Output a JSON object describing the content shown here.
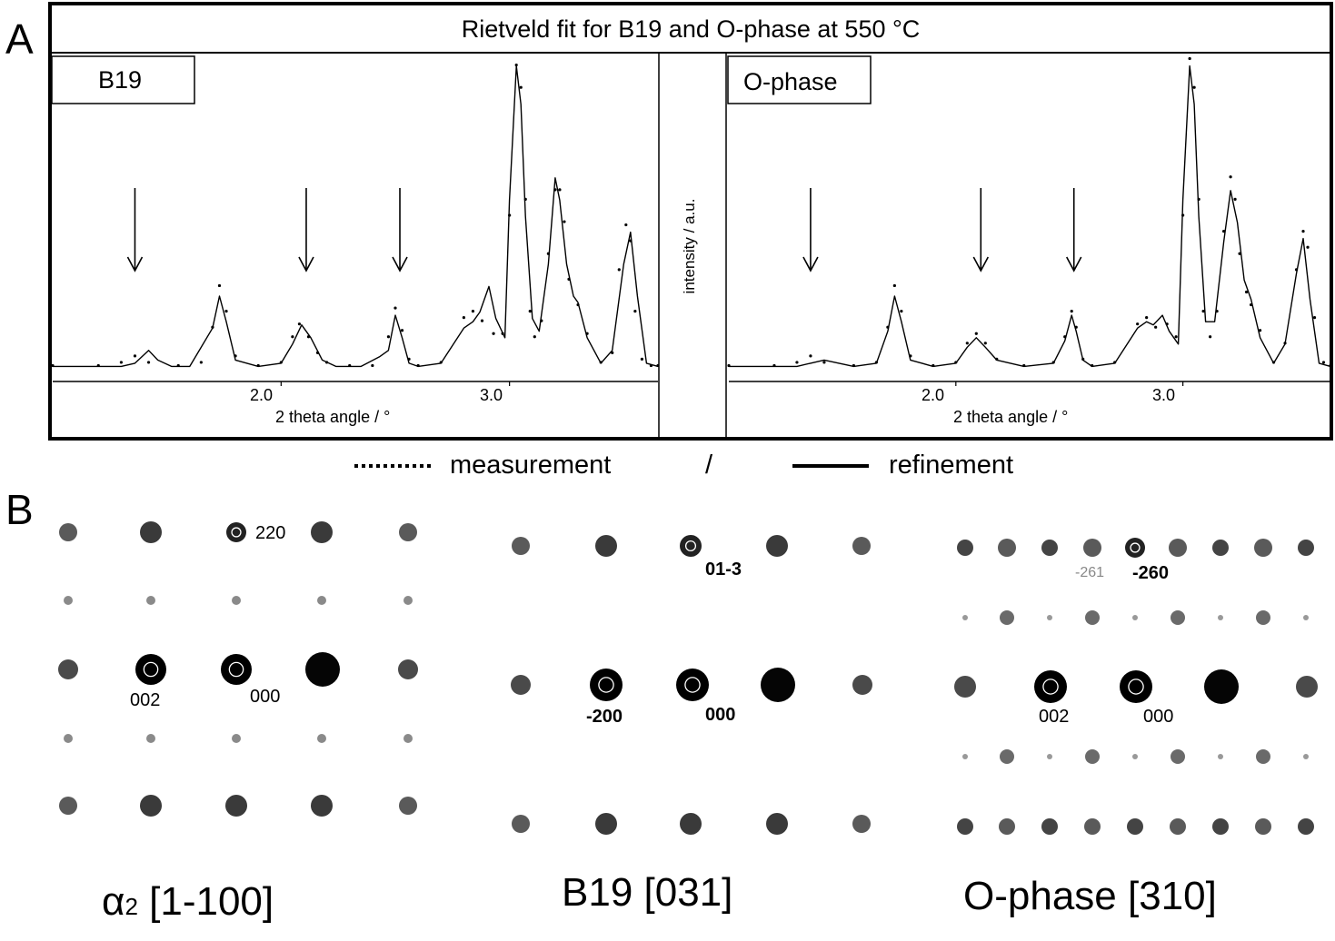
{
  "panel_a": {
    "label": "A",
    "title": "Rietveld fit for B19 and O-phase at 550 °C",
    "ylabel": "intensity / a.u.",
    "legend": {
      "measurement": "measurement",
      "separator": "/",
      "refinement": "refinement"
    }
  },
  "panel_b": {
    "label": "B",
    "patterns": [
      {
        "zone_symbol": "α",
        "zone_sub": "2",
        "zone_axis": "[1-100]",
        "labels": [
          "220",
          "002",
          "000"
        ]
      },
      {
        "zone_axis": "B19 [031]",
        "labels": [
          "01-3",
          "-200",
          "000"
        ]
      },
      {
        "zone_axis": "O-phase [310]",
        "labels": [
          "-261",
          "-260",
          "002",
          "000"
        ]
      }
    ]
  },
  "chart_data": [
    {
      "type": "line",
      "title": "B19",
      "xlabel": "2 theta angle / °",
      "ylabel": "intensity / a.u.",
      "xlim": [
        1.0,
        3.65
      ],
      "ylim": [
        0,
        1.0
      ],
      "xticks": [
        "2.0",
        "3.0"
      ],
      "annotations": [
        {
          "type": "arrow-down",
          "x": 1.36
        },
        {
          "type": "arrow-down",
          "x": 2.11
        },
        {
          "type": "arrow-down",
          "x": 2.52
        }
      ],
      "series": [
        {
          "name": "measurement",
          "x": [
            1.0,
            1.2,
            1.3,
            1.36,
            1.42,
            1.55,
            1.65,
            1.7,
            1.73,
            1.76,
            1.8,
            1.9,
            2.0,
            2.05,
            2.08,
            2.12,
            2.16,
            2.2,
            2.3,
            2.4,
            2.47,
            2.5,
            2.53,
            2.56,
            2.6,
            2.7,
            2.8,
            2.84,
            2.88,
            2.93,
            2.97,
            3.0,
            3.03,
            3.05,
            3.07,
            3.09,
            3.11,
            3.14,
            3.17,
            3.2,
            3.22,
            3.24,
            3.26,
            3.3,
            3.34,
            3.4,
            3.45,
            3.48,
            3.51,
            3.53,
            3.55,
            3.58,
            3.62,
            3.65
          ],
          "y": [
            0.03,
            0.03,
            0.04,
            0.06,
            0.04,
            0.03,
            0.04,
            0.15,
            0.28,
            0.2,
            0.06,
            0.03,
            0.04,
            0.12,
            0.16,
            0.12,
            0.07,
            0.04,
            0.03,
            0.03,
            0.12,
            0.21,
            0.14,
            0.05,
            0.03,
            0.04,
            0.18,
            0.2,
            0.17,
            0.13,
            0.13,
            0.5,
            0.97,
            0.9,
            0.55,
            0.2,
            0.12,
            0.17,
            0.38,
            0.58,
            0.58,
            0.48,
            0.3,
            0.22,
            0.13,
            0.04,
            0.07,
            0.33,
            0.47,
            0.42,
            0.2,
            0.05,
            0.03,
            0.03
          ]
        },
        {
          "name": "refinement",
          "x": [
            1.0,
            1.3,
            1.36,
            1.42,
            1.46,
            1.52,
            1.6,
            1.7,
            1.73,
            1.76,
            1.8,
            1.9,
            2.0,
            2.05,
            2.09,
            2.13,
            2.18,
            2.24,
            2.35,
            2.43,
            2.47,
            2.5,
            2.53,
            2.56,
            2.6,
            2.7,
            2.8,
            2.84,
            2.87,
            2.91,
            2.94,
            2.98,
            3.0,
            3.03,
            3.05,
            3.07,
            3.1,
            3.13,
            3.17,
            3.2,
            3.22,
            3.25,
            3.28,
            3.3,
            3.34,
            3.4,
            3.45,
            3.5,
            3.53,
            3.56,
            3.6,
            3.65
          ],
          "y": [
            0.03,
            0.03,
            0.04,
            0.08,
            0.05,
            0.03,
            0.03,
            0.15,
            0.25,
            0.17,
            0.05,
            0.03,
            0.04,
            0.1,
            0.16,
            0.12,
            0.05,
            0.03,
            0.03,
            0.06,
            0.08,
            0.19,
            0.12,
            0.04,
            0.03,
            0.04,
            0.15,
            0.17,
            0.2,
            0.28,
            0.18,
            0.12,
            0.55,
            0.97,
            0.85,
            0.5,
            0.18,
            0.14,
            0.35,
            0.62,
            0.55,
            0.35,
            0.25,
            0.23,
            0.12,
            0.04,
            0.08,
            0.35,
            0.45,
            0.25,
            0.04,
            0.03
          ]
        }
      ]
    },
    {
      "type": "line",
      "title": "O-phase",
      "xlabel": "2 theta angle / °",
      "ylabel": "intensity / a.u.",
      "xlim": [
        1.0,
        3.65
      ],
      "ylim": [
        0,
        1.0
      ],
      "xticks": [
        "2.0",
        "3.0"
      ],
      "annotations": [
        {
          "type": "arrow-down",
          "x": 1.36
        },
        {
          "type": "arrow-down",
          "x": 2.11
        },
        {
          "type": "arrow-down",
          "x": 2.52
        }
      ],
      "series": [
        {
          "name": "measurement",
          "x": [
            1.0,
            1.2,
            1.3,
            1.36,
            1.42,
            1.55,
            1.65,
            1.7,
            1.73,
            1.76,
            1.8,
            1.9,
            2.0,
            2.05,
            2.09,
            2.13,
            2.18,
            2.3,
            2.43,
            2.48,
            2.51,
            2.53,
            2.56,
            2.6,
            2.7,
            2.8,
            2.84,
            2.88,
            2.93,
            2.97,
            3.0,
            3.03,
            3.05,
            3.07,
            3.09,
            3.12,
            3.15,
            3.18,
            3.21,
            3.23,
            3.25,
            3.28,
            3.3,
            3.34,
            3.4,
            3.45,
            3.5,
            3.53,
            3.55,
            3.58,
            3.62,
            3.65
          ],
          "y": [
            0.03,
            0.03,
            0.04,
            0.06,
            0.04,
            0.03,
            0.04,
            0.15,
            0.28,
            0.2,
            0.06,
            0.03,
            0.04,
            0.1,
            0.13,
            0.1,
            0.05,
            0.03,
            0.04,
            0.12,
            0.2,
            0.15,
            0.05,
            0.03,
            0.04,
            0.16,
            0.18,
            0.15,
            0.16,
            0.12,
            0.5,
            0.99,
            0.9,
            0.55,
            0.2,
            0.12,
            0.2,
            0.45,
            0.62,
            0.55,
            0.38,
            0.26,
            0.22,
            0.14,
            0.04,
            0.1,
            0.33,
            0.45,
            0.4,
            0.18,
            0.04,
            0.03
          ]
        },
        {
          "name": "refinement",
          "x": [
            1.0,
            1.3,
            1.36,
            1.42,
            1.55,
            1.65,
            1.7,
            1.73,
            1.76,
            1.8,
            1.9,
            2.0,
            2.05,
            2.09,
            2.13,
            2.18,
            2.3,
            2.43,
            2.48,
            2.51,
            2.53,
            2.56,
            2.6,
            2.7,
            2.8,
            2.84,
            2.87,
            2.91,
            2.94,
            2.98,
            3.0,
            3.03,
            3.05,
            3.07,
            3.1,
            3.14,
            3.18,
            3.21,
            3.24,
            3.27,
            3.3,
            3.34,
            3.4,
            3.45,
            3.5,
            3.53,
            3.56,
            3.6,
            3.65
          ],
          "y": [
            0.03,
            0.03,
            0.04,
            0.05,
            0.03,
            0.04,
            0.14,
            0.25,
            0.17,
            0.05,
            0.03,
            0.04,
            0.09,
            0.12,
            0.09,
            0.05,
            0.03,
            0.04,
            0.11,
            0.19,
            0.14,
            0.05,
            0.03,
            0.04,
            0.15,
            0.17,
            0.16,
            0.19,
            0.14,
            0.1,
            0.55,
            0.97,
            0.85,
            0.5,
            0.17,
            0.17,
            0.42,
            0.58,
            0.48,
            0.3,
            0.24,
            0.12,
            0.04,
            0.1,
            0.32,
            0.43,
            0.24,
            0.04,
            0.03
          ]
        }
      ]
    }
  ]
}
